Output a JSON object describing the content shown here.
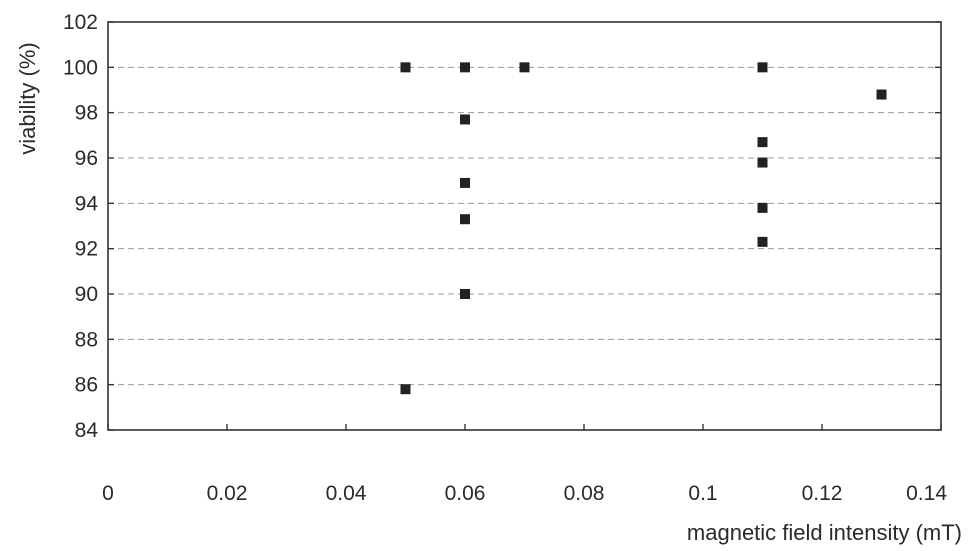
{
  "chart_data": {
    "type": "scatter",
    "title": "",
    "xlabel": "magnetic field intensity (mT)",
    "ylabel": "viability (%)",
    "xlim": [
      0,
      0.14
    ],
    "ylim": [
      84,
      102
    ],
    "x_ticks": [
      0,
      0.02,
      0.04,
      0.06,
      0.08,
      0.1,
      0.12,
      0.14
    ],
    "x_tick_labels": [
      "0",
      "0.02",
      "0.04",
      "0.06",
      "0.08",
      "0.1",
      "0.12",
      "0.14"
    ],
    "y_ticks": [
      84,
      86,
      88,
      90,
      92,
      94,
      96,
      98,
      100,
      102
    ],
    "y_tick_labels": [
      "84",
      "86",
      "88",
      "90",
      "92",
      "94",
      "96",
      "98",
      "100",
      "102"
    ],
    "grid": "horizontal",
    "legend": "none",
    "series": [
      {
        "points": [
          {
            "x": 0.05,
            "y": 100
          },
          {
            "x": 0.05,
            "y": 85.8
          },
          {
            "x": 0.06,
            "y": 100
          },
          {
            "x": 0.06,
            "y": 97.7
          },
          {
            "x": 0.06,
            "y": 94.9
          },
          {
            "x": 0.06,
            "y": 93.3
          },
          {
            "x": 0.06,
            "y": 90
          },
          {
            "x": 0.07,
            "y": 100
          },
          {
            "x": 0.11,
            "y": 100
          },
          {
            "x": 0.11,
            "y": 96.7
          },
          {
            "x": 0.11,
            "y": 95.8
          },
          {
            "x": 0.11,
            "y": 93.8
          },
          {
            "x": 0.11,
            "y": 92.3
          },
          {
            "x": 0.13,
            "y": 98.8
          }
        ]
      }
    ],
    "colors": {
      "marker": "#222222",
      "frame": "#333333",
      "gridline": "#9a9a9a",
      "text": "#2a2a2a"
    },
    "marker_shape": "square"
  }
}
